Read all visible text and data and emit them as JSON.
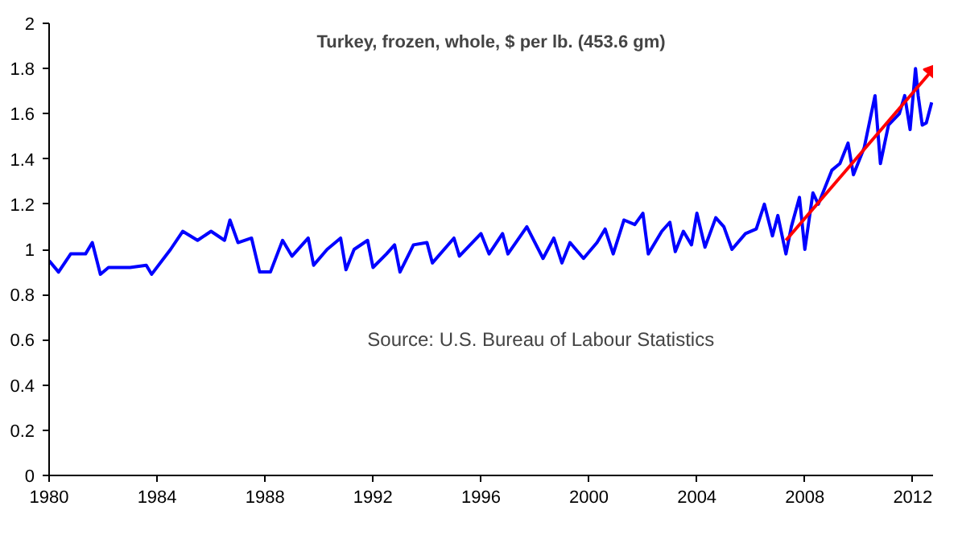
{
  "chart_data": {
    "type": "line",
    "title": "Turkey, frozen, whole, $ per lb. (453.6 gm)",
    "annotations": [
      "Source: U.S. Bureau of Labour Statistics"
    ],
    "xlim": [
      1980,
      2012.75
    ],
    "ylim": [
      0,
      2
    ],
    "xticks": [
      1980,
      1984,
      1988,
      1992,
      1996,
      2000,
      2004,
      2008,
      2012
    ],
    "yticks": [
      0,
      0.2,
      0.4,
      0.6,
      0.8,
      1,
      1.2,
      1.4,
      1.6,
      1.8,
      2
    ],
    "grid": false,
    "marker": "none",
    "line_style": "solid",
    "x": [
      1980.0,
      1980.35,
      1980.8,
      1981.35,
      1981.6,
      1981.9,
      1982.2,
      1983.0,
      1983.6,
      1983.8,
      1984.5,
      1984.95,
      1985.5,
      1986.0,
      1986.5,
      1986.7,
      1987.0,
      1987.5,
      1987.8,
      1988.2,
      1988.65,
      1989.0,
      1989.6,
      1989.8,
      1990.3,
      1990.8,
      1991.0,
      1991.3,
      1991.8,
      1992.0,
      1992.5,
      1992.8,
      1993.0,
      1993.5,
      1994.0,
      1994.2,
      1995.0,
      1995.2,
      1996.0,
      1996.3,
      1996.8,
      1997.0,
      1997.7,
      1998.3,
      1998.7,
      1999.0,
      1999.3,
      1999.8,
      2000.3,
      2000.6,
      2000.9,
      2001.3,
      2001.7,
      2002.0,
      2002.2,
      2002.7,
      2003.0,
      2003.2,
      2003.5,
      2003.8,
      2004.0,
      2004.3,
      2004.7,
      2005.0,
      2005.3,
      2005.8,
      2006.2,
      2006.5,
      2006.8,
      2007.0,
      2007.3,
      2007.5,
      2007.8,
      2008.0,
      2008.3,
      2008.5,
      2009.0,
      2009.3,
      2009.6,
      2009.8,
      2010.2,
      2010.6,
      2010.8,
      2011.1,
      2011.5,
      2011.7,
      2011.9,
      2012.1,
      2012.2,
      2012.35,
      2012.5,
      2012.7
    ],
    "series": [
      {
        "color": "#0000ff",
        "values": [
          0.95,
          0.9,
          0.98,
          0.98,
          1.03,
          0.89,
          0.92,
          0.92,
          0.93,
          0.89,
          1.0,
          1.08,
          1.04,
          1.08,
          1.04,
          1.13,
          1.03,
          1.05,
          0.9,
          0.9,
          1.04,
          0.97,
          1.05,
          0.93,
          1.0,
          1.05,
          0.91,
          1.0,
          1.04,
          0.92,
          0.98,
          1.02,
          0.9,
          1.02,
          1.03,
          0.94,
          1.05,
          0.97,
          1.07,
          0.98,
          1.07,
          0.98,
          1.1,
          0.96,
          1.05,
          0.94,
          1.03,
          0.96,
          1.03,
          1.09,
          0.98,
          1.13,
          1.11,
          1.16,
          0.98,
          1.08,
          1.12,
          0.99,
          1.08,
          1.02,
          1.16,
          1.01,
          1.14,
          1.1,
          1.0,
          1.07,
          1.09,
          1.2,
          1.06,
          1.15,
          0.98,
          1.1,
          1.23,
          1.0,
          1.25,
          1.2,
          1.35,
          1.38,
          1.47,
          1.33,
          1.45,
          1.68,
          1.38,
          1.55,
          1.6,
          1.68,
          1.53,
          1.8,
          1.68,
          1.55,
          1.56,
          1.65
        ]
      },
      {
        "color": "#ff0000",
        "marker": "triangle",
        "x": [
          2007.3,
          2012.7
        ],
        "values": [
          1.04,
          1.79
        ]
      }
    ]
  }
}
